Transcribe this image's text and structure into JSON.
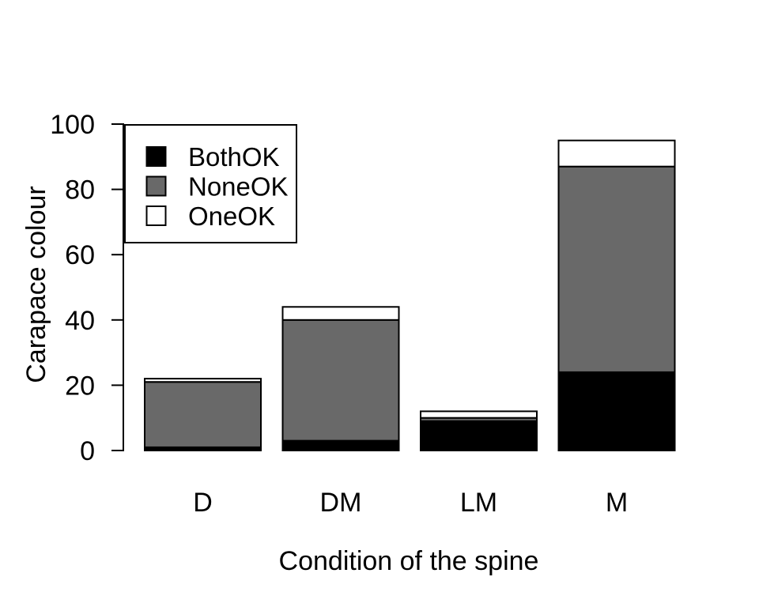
{
  "chart_data": {
    "type": "bar",
    "stacked": true,
    "title": "",
    "xlabel": "Condition of the spine",
    "ylabel": "Carapace colour",
    "categories": [
      "D",
      "DM",
      "LM",
      "M"
    ],
    "series": [
      {
        "name": "BothOK",
        "color": "#000000",
        "values": [
          1,
          3,
          9,
          24
        ]
      },
      {
        "name": "NoneOK",
        "color": "#696969",
        "values": [
          20,
          37,
          1,
          63
        ]
      },
      {
        "name": "OneOK",
        "color": "#ffffff",
        "values": [
          1,
          4,
          2,
          8
        ]
      }
    ],
    "ylim": [
      0,
      100
    ],
    "yticks": [
      0,
      20,
      40,
      60,
      80,
      100
    ],
    "grid": false,
    "legend_position": "top-left",
    "bar_border_color": "#000000",
    "background_color": "#ffffff"
  }
}
